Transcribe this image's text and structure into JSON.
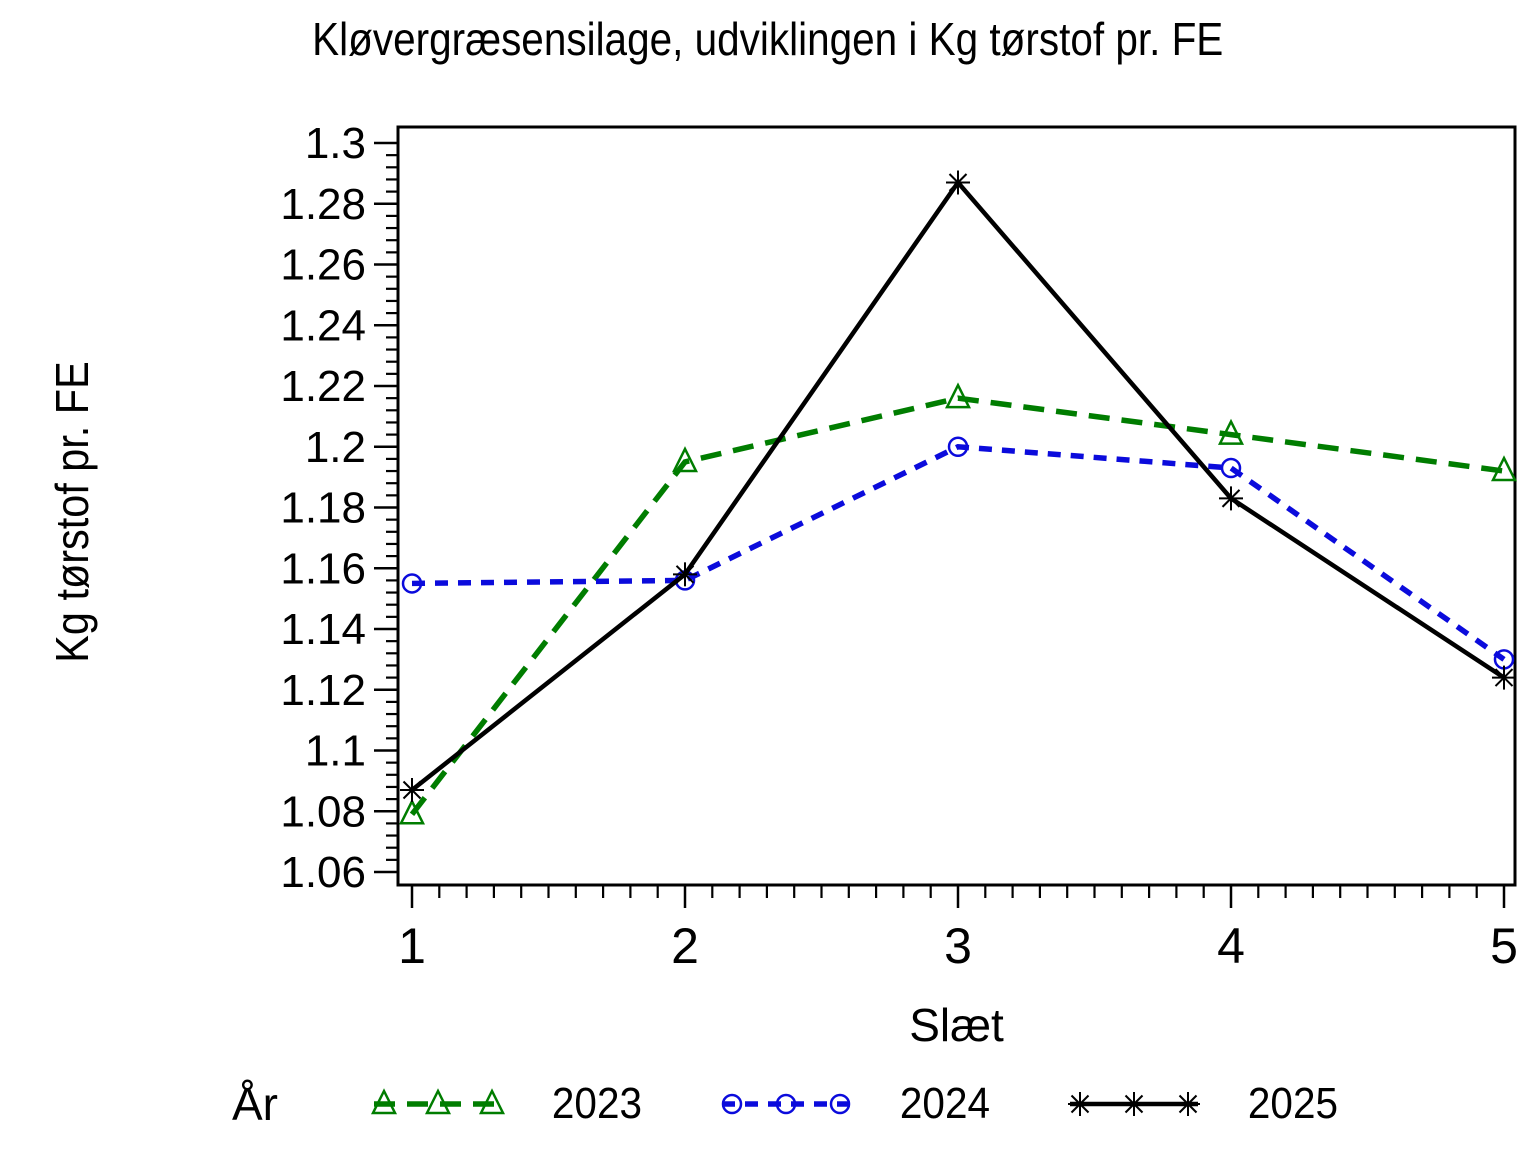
{
  "page": {
    "background": "#ffffff"
  },
  "chart_data": {
    "type": "line",
    "title": "Kløvergræsensilage,  udviklingen  i  Kg  tørstof  pr.  FE",
    "xlabel": "Slæt",
    "ylabel": "Kg  tørstof  pr.  FE",
    "legend_title": "År",
    "legend_position": "bottom",
    "grid": false,
    "x": [
      1,
      2,
      3,
      4,
      5
    ],
    "x_tick_labels": [
      "1",
      "2",
      "3",
      "4",
      "5"
    ],
    "x_minor_tick_step": 0.1,
    "y_major_ticks": [
      1.06,
      1.08,
      1.1,
      1.12,
      1.14,
      1.16,
      1.18,
      1.2,
      1.22,
      1.24,
      1.26,
      1.28,
      1.3
    ],
    "y_tick_labels": [
      "1.06",
      "1.08",
      "1.1",
      "1.12",
      "1.14",
      "1.16",
      "1.18",
      "1.2",
      "1.22",
      "1.24",
      "1.26",
      "1.28",
      "1.3"
    ],
    "y_minor_tick_step": 0.004,
    "xlim": [
      0.95,
      5.04
    ],
    "ylim": [
      1.055,
      1.306
    ],
    "series": [
      {
        "name": "2023",
        "color": "#007d00",
        "line_style": "dashed-long",
        "marker": "triangle",
        "values": [
          1.079,
          1.195,
          1.216,
          1.204,
          1.192
        ]
      },
      {
        "name": "2024",
        "color": "#0b0bdc",
        "line_style": "dashed-short",
        "marker": "circle",
        "values": [
          1.155,
          1.156,
          1.2,
          1.193,
          1.13
        ]
      },
      {
        "name": "2025",
        "color": "#000000",
        "line_style": "solid",
        "marker": "star",
        "values": [
          1.087,
          1.158,
          1.287,
          1.183,
          1.124
        ]
      }
    ]
  }
}
